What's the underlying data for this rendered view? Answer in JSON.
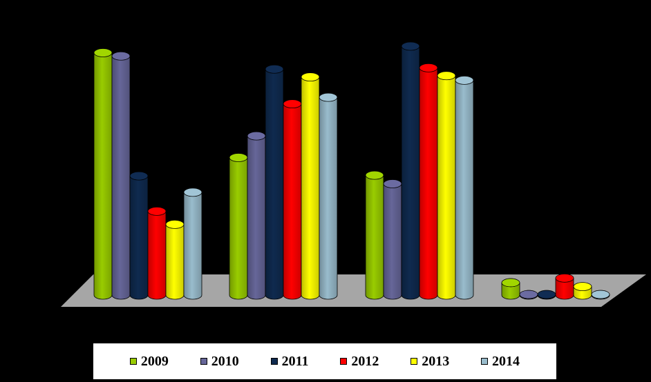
{
  "chart_data": {
    "type": "bar",
    "style": "3d-cylinder",
    "categories": [
      "",
      "",
      "",
      ""
    ],
    "series": [
      {
        "name": "2009",
        "color": "#99cc00",
        "values": [
          370,
          210,
          183,
          19
        ]
      },
      {
        "name": "2010",
        "color": "#666699",
        "values": [
          365,
          243,
          170,
          1
        ]
      },
      {
        "name": "2011",
        "color": "#0f2a4f",
        "values": [
          182,
          345,
          380,
          1
        ]
      },
      {
        "name": "2012",
        "color": "#ff0000",
        "values": [
          128,
          292,
          347,
          26
        ]
      },
      {
        "name": "2013",
        "color": "#ffff00",
        "values": [
          108,
          333,
          335,
          13
        ]
      },
      {
        "name": "2014",
        "color": "#99bccc",
        "values": [
          157,
          302,
          328,
          1
        ]
      }
    ],
    "ylim": [
      0,
      400
    ],
    "grid": false,
    "legend_position": "bottom",
    "floor_color": "#a6a6a6",
    "background_color": "#000000"
  }
}
